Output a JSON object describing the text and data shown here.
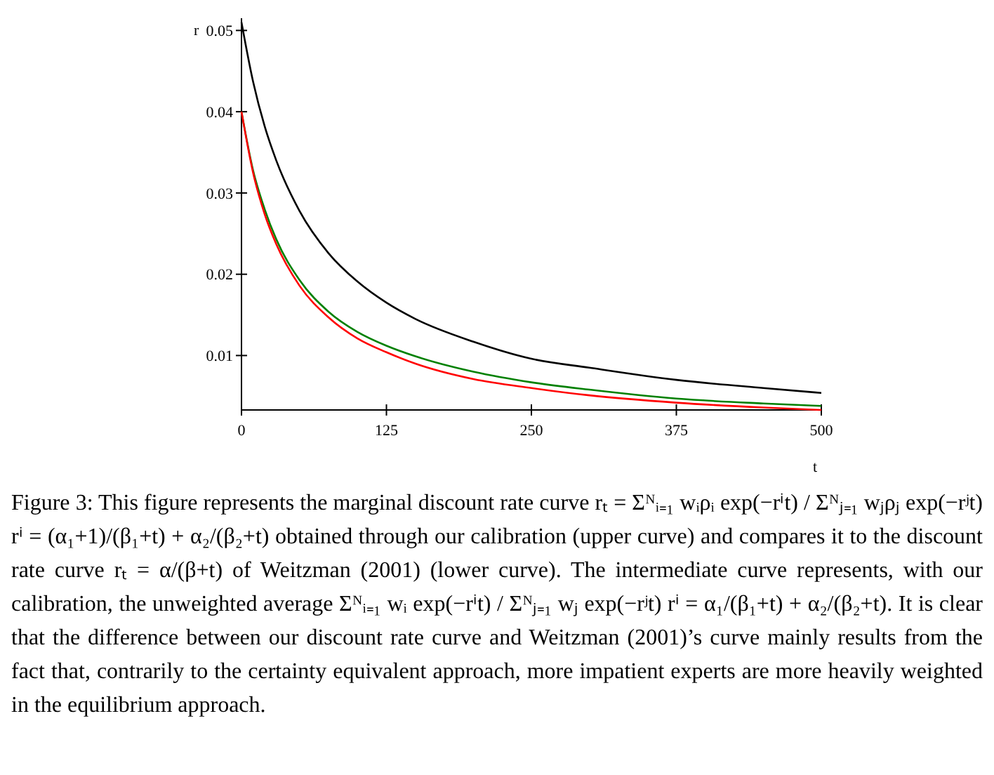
{
  "chart_data": {
    "type": "line",
    "xlabel": "t",
    "ylabel": "r",
    "x": [
      0,
      10,
      20,
      30,
      50,
      75,
      100,
      125,
      150,
      200,
      250,
      300,
      375,
      450,
      500
    ],
    "xlim": [
      0,
      500
    ],
    "xticks": [
      0,
      125,
      250,
      375,
      500
    ],
    "ylim": [
      0.0033,
      0.0515
    ],
    "yticks": [
      0.01,
      0.02,
      0.03,
      0.04,
      0.05
    ],
    "series": [
      {
        "color": "#000000",
        "values": [
          0.051,
          0.0437,
          0.0382,
          0.034,
          0.0278,
          0.0226,
          0.0191,
          0.0165,
          0.0145,
          0.0117,
          0.0096,
          0.0085,
          0.007,
          0.006,
          0.0054
        ]
      },
      {
        "color": "#008000",
        "values": [
          0.04,
          0.0328,
          0.028,
          0.0243,
          0.0193,
          0.0154,
          0.0129,
          0.0112,
          0.0099,
          0.008,
          0.0067,
          0.0058,
          0.0047,
          0.0041,
          0.0038
        ]
      },
      {
        "color": "#ff0000",
        "values": [
          0.04,
          0.0325,
          0.0274,
          0.0237,
          0.0186,
          0.0147,
          0.0121,
          0.0104,
          0.009,
          0.0071,
          0.006,
          0.0051,
          0.0042,
          0.0036,
          0.0033
        ]
      }
    ],
    "annotations": [
      "Figure 3: This figure represents the marginal discount rate curve rₜ = Σᴺᵢ₌₁ wᵢρᵢ exp(−rⁱt) / Σᴺⱼ₌₁ wⱼρⱼ exp(−rʲt) rⁱ = (α₁+1)/(β₁+t) + α₂/(β₂+t) obtained through our calibration (upper curve) and compares it to the discount rate curve rₜ = α/(β+t) of Weitzman (2001) (lower curve). The intermediate curve represents, with our calibration, the unweighted average Σᴺᵢ₌₁ wᵢ exp(−rⁱt) / Σᴺⱼ₌₁ wⱼ exp(−rʲt) rⁱ = α₁/(β₁+t) + α₂/(β₂+t). It is clear that the difference between our discount rate curve and Weitzman (2001)’s curve mainly results from the fact that, contrarily to the certainty equivalent approach, more impatient experts are more heavily weighted in the equilibrium approach."
    ]
  }
}
